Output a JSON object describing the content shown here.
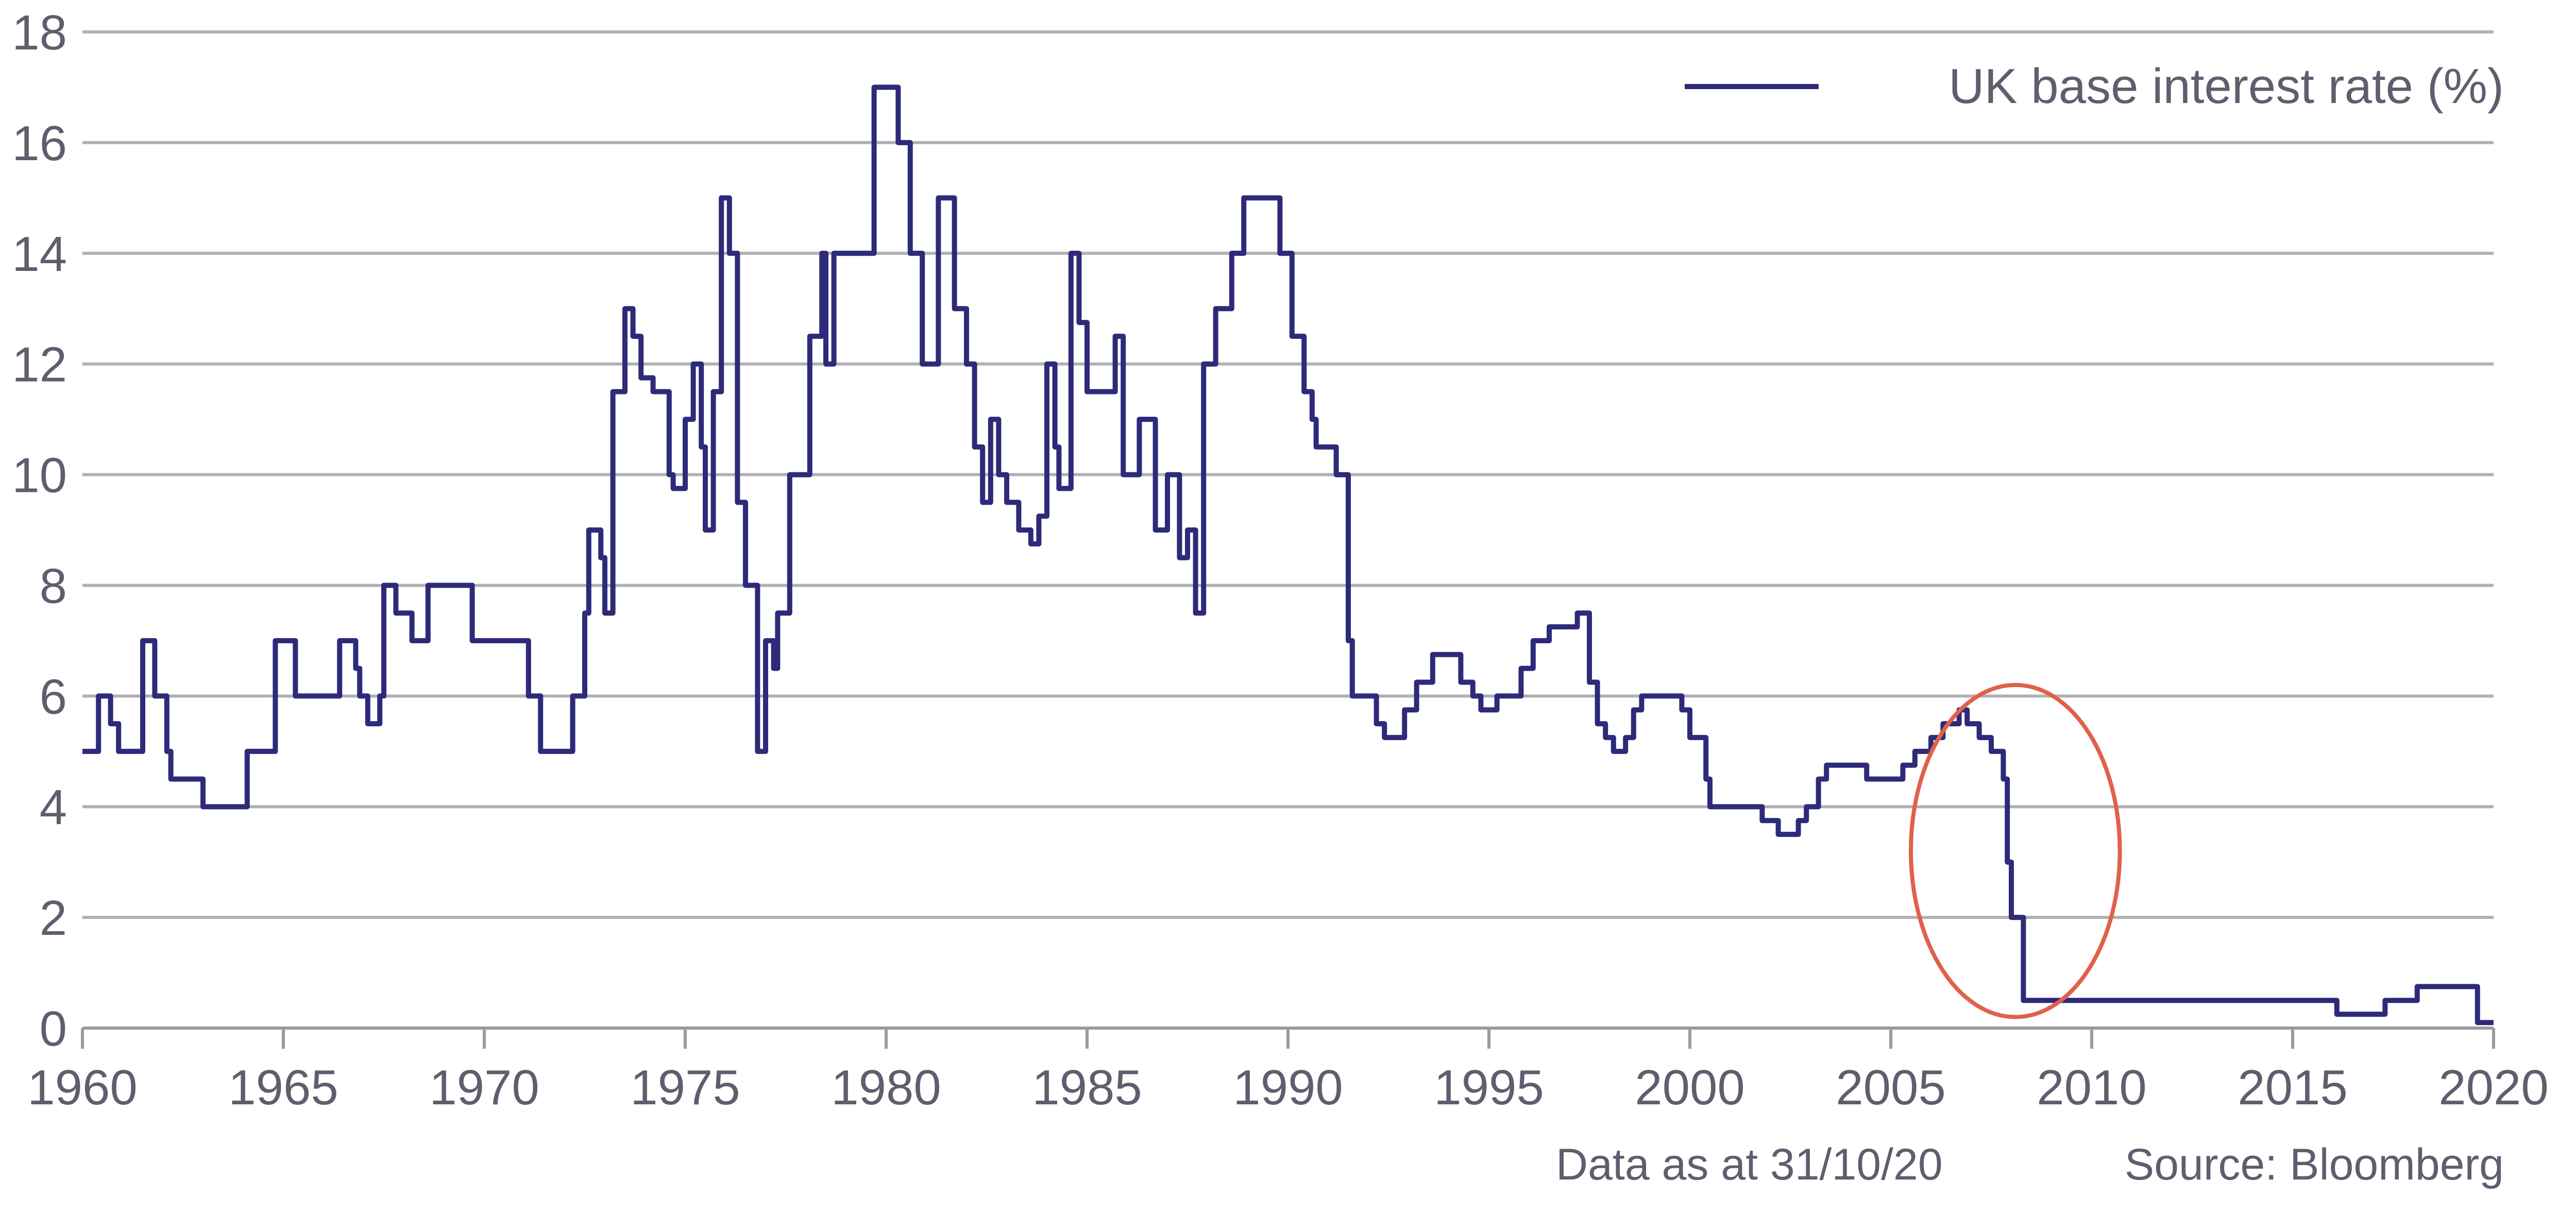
{
  "chart_data": {
    "type": "line",
    "title": "",
    "xlabel": "",
    "ylabel": "",
    "xlim": [
      1960,
      2020
    ],
    "ylim": [
      0,
      18
    ],
    "x_ticks": [
      "1960",
      "1965",
      "1970",
      "1975",
      "1980",
      "1985",
      "1990",
      "1995",
      "2000",
      "2005",
      "2010",
      "2015",
      "2020"
    ],
    "y_ticks": [
      "0",
      "2",
      "4",
      "6",
      "8",
      "10",
      "12",
      "14",
      "16",
      "18"
    ],
    "grid": "horizontal",
    "legend_position": "top-right",
    "series": [
      {
        "name": "UK base interest rate (%)",
        "color": "#2e2a7a",
        "step": true,
        "points": [
          [
            1960.0,
            5.0
          ],
          [
            1960.4,
            6.0
          ],
          [
            1960.7,
            5.5
          ],
          [
            1960.9,
            5.0
          ],
          [
            1961.5,
            7.0
          ],
          [
            1961.8,
            6.0
          ],
          [
            1962.1,
            5.0
          ],
          [
            1962.2,
            4.5
          ],
          [
            1963.0,
            4.0
          ],
          [
            1964.1,
            5.0
          ],
          [
            1964.8,
            7.0
          ],
          [
            1965.3,
            6.0
          ],
          [
            1966.4,
            7.0
          ],
          [
            1966.8,
            6.5
          ],
          [
            1966.9,
            6.0
          ],
          [
            1967.1,
            5.5
          ],
          [
            1967.4,
            6.0
          ],
          [
            1967.5,
            8.0
          ],
          [
            1967.8,
            7.5
          ],
          [
            1968.2,
            7.0
          ],
          [
            1968.6,
            8.0
          ],
          [
            1969.7,
            7.0
          ],
          [
            1971.1,
            6.0
          ],
          [
            1971.4,
            5.0
          ],
          [
            1972.2,
            6.0
          ],
          [
            1972.5,
            7.5
          ],
          [
            1972.6,
            9.0
          ],
          [
            1972.9,
            8.5
          ],
          [
            1973.0,
            7.5
          ],
          [
            1973.2,
            11.5
          ],
          [
            1973.5,
            13.0
          ],
          [
            1973.7,
            12.5
          ],
          [
            1973.9,
            11.75
          ],
          [
            1974.2,
            11.5
          ],
          [
            1974.6,
            10.0
          ],
          [
            1974.7,
            9.75
          ],
          [
            1975.0,
            11.0
          ],
          [
            1975.2,
            12.0
          ],
          [
            1975.4,
            10.5
          ],
          [
            1975.5,
            9.0
          ],
          [
            1975.7,
            11.5
          ],
          [
            1975.9,
            15.0
          ],
          [
            1976.1,
            14.0
          ],
          [
            1976.3,
            9.5
          ],
          [
            1976.5,
            8.0
          ],
          [
            1976.8,
            5.0
          ],
          [
            1977.0,
            7.0
          ],
          [
            1977.2,
            6.5
          ],
          [
            1977.3,
            7.5
          ],
          [
            1977.6,
            10.0
          ],
          [
            1978.1,
            12.5
          ],
          [
            1978.4,
            14.0
          ],
          [
            1978.5,
            12.0
          ],
          [
            1978.7,
            14.0
          ],
          [
            1979.7,
            17.0
          ],
          [
            1980.3,
            16.0
          ],
          [
            1980.6,
            14.0
          ],
          [
            1980.9,
            12.0
          ],
          [
            1981.3,
            15.0
          ],
          [
            1981.7,
            13.0
          ],
          [
            1982.0,
            12.0
          ],
          [
            1982.2,
            10.5
          ],
          [
            1982.4,
            9.5
          ],
          [
            1982.6,
            11.0
          ],
          [
            1982.8,
            10.0
          ],
          [
            1983.0,
            9.5
          ],
          [
            1983.3,
            9.0
          ],
          [
            1983.6,
            8.75
          ],
          [
            1983.8,
            9.25
          ],
          [
            1984.0,
            12.0
          ],
          [
            1984.2,
            10.5
          ],
          [
            1984.3,
            9.75
          ],
          [
            1984.6,
            14.0
          ],
          [
            1984.8,
            12.75
          ],
          [
            1985.0,
            11.5
          ],
          [
            1985.7,
            12.5
          ],
          [
            1985.9,
            10.0
          ],
          [
            1986.3,
            11.0
          ],
          [
            1986.7,
            9.0
          ],
          [
            1987.0,
            10.0
          ],
          [
            1987.3,
            8.5
          ],
          [
            1987.5,
            9.0
          ],
          [
            1987.7,
            7.5
          ],
          [
            1987.9,
            12.0
          ],
          [
            1988.2,
            13.0
          ],
          [
            1988.6,
            14.0
          ],
          [
            1988.9,
            15.0
          ],
          [
            1989.8,
            14.0
          ],
          [
            1990.1,
            12.5
          ],
          [
            1990.4,
            11.5
          ],
          [
            1990.6,
            11.0
          ],
          [
            1990.7,
            10.5
          ],
          [
            1991.2,
            10.0
          ],
          [
            1991.5,
            7.0
          ],
          [
            1991.6,
            6.0
          ],
          [
            1992.2,
            5.5
          ],
          [
            1992.4,
            5.25
          ],
          [
            1992.9,
            5.75
          ],
          [
            1993.2,
            6.25
          ],
          [
            1993.6,
            6.75
          ],
          [
            1994.3,
            6.25
          ],
          [
            1994.6,
            6.0
          ],
          [
            1994.8,
            5.75
          ],
          [
            1995.2,
            6.0
          ],
          [
            1995.8,
            6.5
          ],
          [
            1996.1,
            7.0
          ],
          [
            1996.5,
            7.25
          ],
          [
            1997.2,
            7.5
          ],
          [
            1997.5,
            6.25
          ],
          [
            1997.7,
            5.5
          ],
          [
            1997.9,
            5.25
          ],
          [
            1998.1,
            5.0
          ],
          [
            1998.4,
            5.25
          ],
          [
            1998.6,
            5.75
          ],
          [
            1998.8,
            6.0
          ],
          [
            1999.8,
            5.75
          ],
          [
            2000.0,
            5.25
          ],
          [
            2000.4,
            4.5
          ],
          [
            2000.5,
            4.0
          ],
          [
            2001.8,
            3.75
          ],
          [
            2002.2,
            3.5
          ],
          [
            2002.7,
            3.75
          ],
          [
            2002.9,
            4.0
          ],
          [
            2003.2,
            4.5
          ],
          [
            2003.4,
            4.75
          ],
          [
            2004.4,
            4.5
          ],
          [
            2005.3,
            4.75
          ],
          [
            2005.6,
            5.0
          ],
          [
            2006.0,
            5.25
          ],
          [
            2006.3,
            5.5
          ],
          [
            2006.7,
            5.75
          ],
          [
            2006.9,
            5.5
          ],
          [
            2007.2,
            5.25
          ],
          [
            2007.5,
            5.0
          ],
          [
            2007.8,
            4.5
          ],
          [
            2007.9,
            3.0
          ],
          [
            2008.0,
            2.0
          ],
          [
            2008.3,
            0.5
          ],
          [
            2016.1,
            0.25
          ],
          [
            2017.3,
            0.5
          ],
          [
            2018.1,
            0.75
          ],
          [
            2019.6,
            0.1
          ],
          [
            2020.0,
            0.1
          ]
        ]
      }
    ],
    "annotations": [
      {
        "type": "ellipse",
        "color": "#e0614a",
        "x_range": [
          2005.5,
          2010.7
        ],
        "y_range": [
          0.2,
          6.2
        ]
      }
    ]
  },
  "legend": {
    "label": "UK base interest rate (%)"
  },
  "footer": {
    "data_date": "Data as at 31/10/20",
    "source": "Source: Bloomberg"
  },
  "colors": {
    "line": "#2e2a7a",
    "grid": "#b0b0b5",
    "axis": "#9a9aa0",
    "text": "#5d5f6e",
    "highlight": "#e0614a"
  }
}
